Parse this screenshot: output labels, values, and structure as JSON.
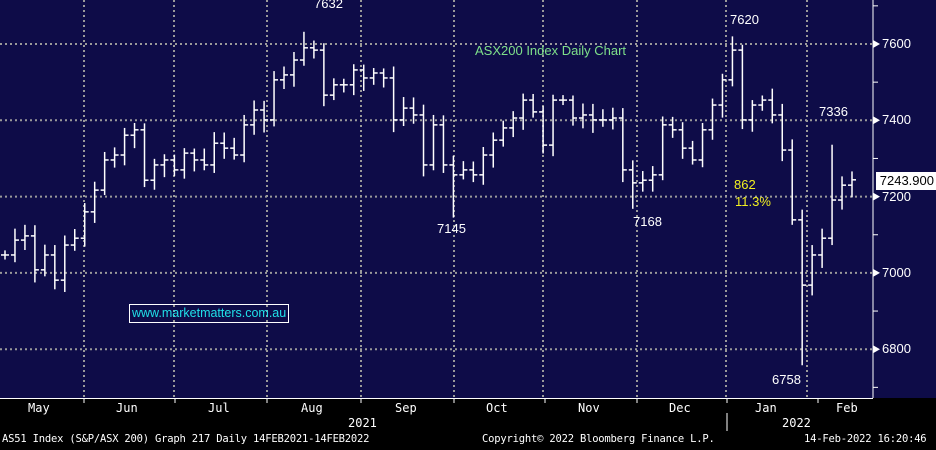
{
  "chart_data": {
    "type": "ohlc-bar",
    "title": "ASX200 Index Daily Chart",
    "ylim": [
      6680,
      7700
    ],
    "yticks": [
      6800,
      7000,
      7200,
      7400,
      7600
    ],
    "ytick_labels": [
      "6800",
      "7000",
      "7200",
      "7400",
      "7600"
    ],
    "xtick_labels": [
      "May",
      "Jun",
      "Jul",
      "Aug",
      "Sep",
      "Oct",
      "Nov",
      "Dec",
      "Jan",
      "Feb"
    ],
    "year_labels": [
      "2021",
      "2022"
    ],
    "grid": true,
    "closes": [
      7047,
      7086,
      7097,
      7008,
      7047,
      6981,
      7073,
      7091,
      7160,
      7217,
      7296,
      7309,
      7361,
      7375,
      7243,
      7283,
      7296,
      7270,
      7314,
      7296,
      7283,
      7340,
      7327,
      7309,
      7388,
      7427,
      7401,
      7506,
      7519,
      7558,
      7590,
      7584,
      7466,
      7493,
      7493,
      7532,
      7511,
      7524,
      7511,
      7401,
      7432,
      7414,
      7283,
      7388,
      7283,
      7257,
      7270,
      7257,
      7309,
      7348,
      7380,
      7406,
      7453,
      7422,
      7335,
      7453,
      7453,
      7406,
      7414,
      7401,
      7401,
      7406,
      7270,
      7236,
      7243,
      7257,
      7388,
      7375,
      7327,
      7296,
      7375,
      7440,
      7506,
      7584,
      7401,
      7440,
      7453,
      7414,
      7322,
      7139,
      6968,
      7047,
      7091,
      7191,
      7230,
      7244
    ],
    "annotations": [
      {
        "index": 30,
        "value": 7632,
        "label": "7632",
        "type": "high"
      },
      {
        "index": 45,
        "value": 7145,
        "label": "7145",
        "type": "low"
      },
      {
        "index": 63,
        "value": 7168,
        "label": "7168",
        "type": "low"
      },
      {
        "index": 73,
        "value": 7620,
        "label": "7620",
        "type": "high"
      },
      {
        "index": 80,
        "value": 6758,
        "label": "6758",
        "type": "low"
      },
      {
        "index": 83,
        "value": 7336,
        "label": "7336",
        "type": "high"
      }
    ],
    "last_price": "7243.900",
    "decline_points": "862",
    "decline_pct": "11.3%"
  },
  "watermark": "www.marketmatters.com.au",
  "footer": {
    "security": "AS51 Index (S&P/ASX 200) Graph 217  Daily 14FEB2021-14FEB2022",
    "copyright": "Copyright© 2022 Bloomberg Finance L.P.",
    "timestamp": "14-Feb-2022 16:20:46"
  },
  "colors": {
    "background": "#0e0c48",
    "bars": "#ffffff",
    "grid": "#9a9a9a",
    "title": "#7ee08a",
    "annotation": "#f2f020",
    "watermark": "#20e0e8"
  }
}
